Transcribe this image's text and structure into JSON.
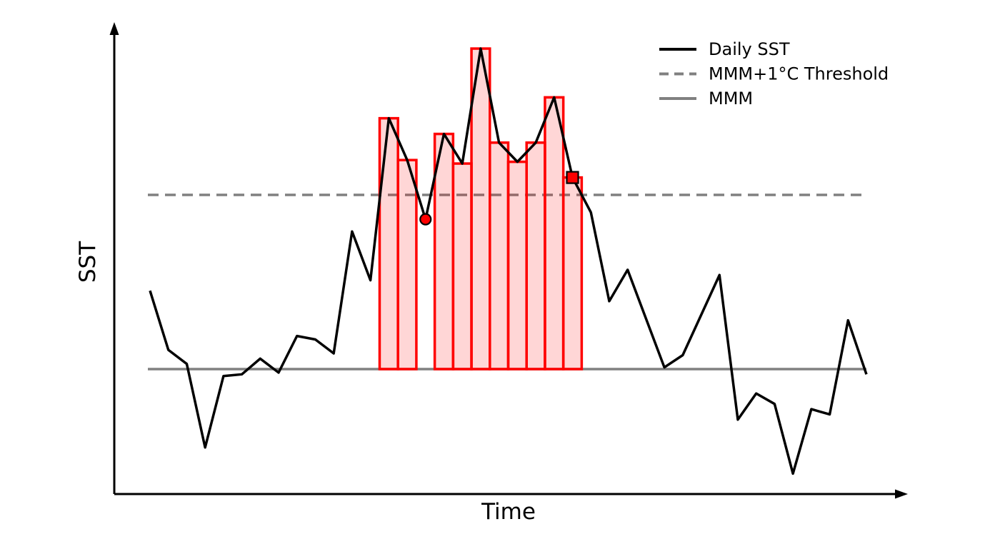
{
  "figure": {
    "title": "",
    "ylabel": "SST",
    "xlabel": "Time",
    "background": "#ffffff"
  },
  "legend": {
    "position": "upper right",
    "frame": false,
    "items": [
      {
        "label": "Daily SST",
        "key": "daily",
        "color": "#000000",
        "style": "solid"
      },
      {
        "label": "MMM+1°C Threshold",
        "key": "threshold",
        "color": "#808080",
        "style": "dashed"
      },
      {
        "label": "MMM",
        "key": "mmm",
        "color": "#808080",
        "style": "solid"
      }
    ]
  },
  "chart_data": {
    "type": "line",
    "title": "",
    "xlabel": "Time",
    "ylabel": "SST",
    "grid": false,
    "axis_ticks": "none",
    "value_units": "degrees C above MMM (axes carry no numeric labels; MMM = 0, threshold = +1)",
    "x": [
      1,
      2,
      3,
      4,
      5,
      6,
      7,
      8,
      9,
      10,
      11,
      12,
      13,
      14,
      15,
      16,
      17,
      18,
      19,
      20,
      21,
      22,
      23,
      24,
      25,
      26,
      27,
      28,
      29,
      30,
      31,
      32,
      33,
      34,
      35,
      36,
      37,
      38,
      39,
      40
    ],
    "series": [
      {
        "name": "Daily SST",
        "color": "#000000",
        "values": [
          0.45,
          0.11,
          0.03,
          -0.45,
          -0.04,
          -0.03,
          0.06,
          -0.02,
          0.19,
          0.17,
          0.09,
          0.79,
          0.51,
          1.44,
          1.2,
          0.86,
          1.35,
          1.18,
          1.84,
          1.3,
          1.19,
          1.3,
          1.56,
          1.1,
          0.9,
          0.39,
          0.57,
          0.29,
          0.01,
          0.08,
          0.31,
          0.54,
          -0.29,
          -0.14,
          -0.2,
          -0.6,
          -0.23,
          -0.26,
          0.28,
          -0.03
        ]
      }
    ],
    "reference_lines": [
      {
        "name": "MMM+1°C Threshold",
        "value": 1.0,
        "color": "#808080",
        "style": "dashed"
      },
      {
        "name": "MMM",
        "value": 0.0,
        "color": "#808080",
        "style": "solid"
      }
    ],
    "above_threshold_days": [
      14,
      15,
      17,
      18,
      19,
      20,
      21,
      22,
      23,
      24
    ],
    "bars": {
      "fill": "#ff0000",
      "fill_opacity": 0.16,
      "edge": "#ff0000",
      "baseline_value": 0.0
    },
    "markers": [
      {
        "shape": "circle",
        "day": 16,
        "value": 0.86,
        "fill": "#ff0000",
        "edge": "#000000"
      },
      {
        "shape": "square",
        "day": 24,
        "value": 1.1,
        "fill": "#ff0000",
        "edge": "#000000"
      }
    ],
    "legend": {
      "position": "upper right",
      "frame": false,
      "entries": [
        "Daily SST",
        "MMM+1°C Threshold",
        "MMM"
      ]
    },
    "ylim": [
      -1.0,
      2.0
    ]
  }
}
